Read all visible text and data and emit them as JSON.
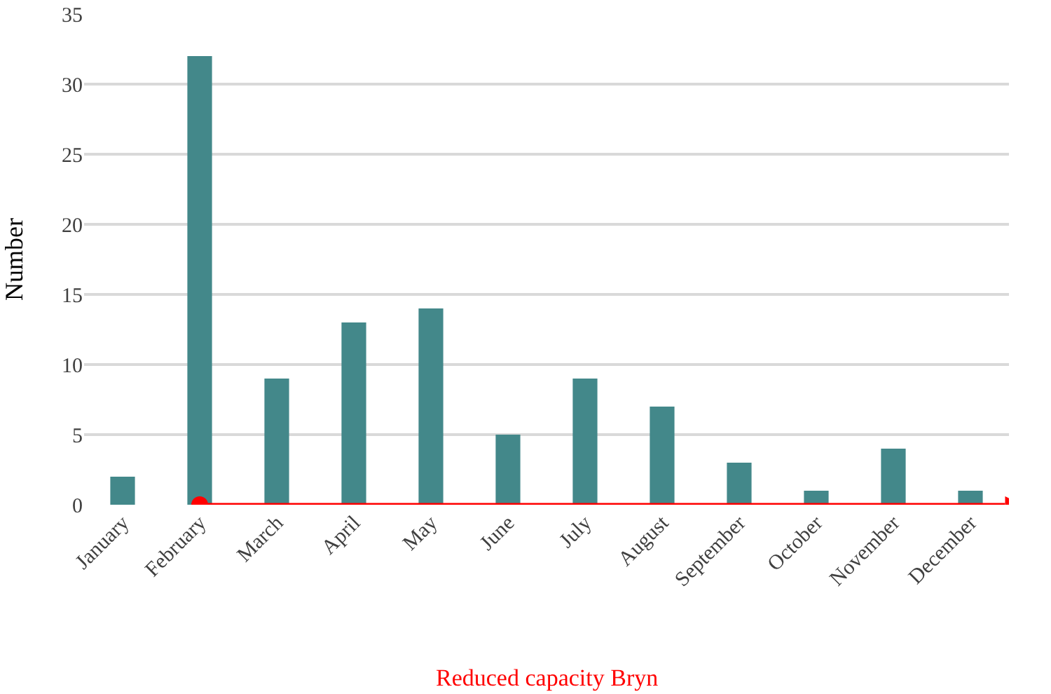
{
  "chart_data": {
    "type": "bar",
    "ylabel": "Number",
    "categories": [
      "January",
      "February",
      "March",
      "April",
      "May",
      "June",
      "July",
      "August",
      "September",
      "October",
      "November",
      "December"
    ],
    "values": [
      2,
      32,
      9,
      13,
      14,
      5,
      9,
      7,
      3,
      1,
      4,
      1
    ],
    "color": "#43888a",
    "ylim": [
      0,
      35
    ],
    "yticks": [
      0,
      5,
      10,
      15,
      20,
      25,
      30,
      35
    ],
    "grid": "y",
    "annotations": [
      "Reduced capacity Bryn"
    ]
  }
}
